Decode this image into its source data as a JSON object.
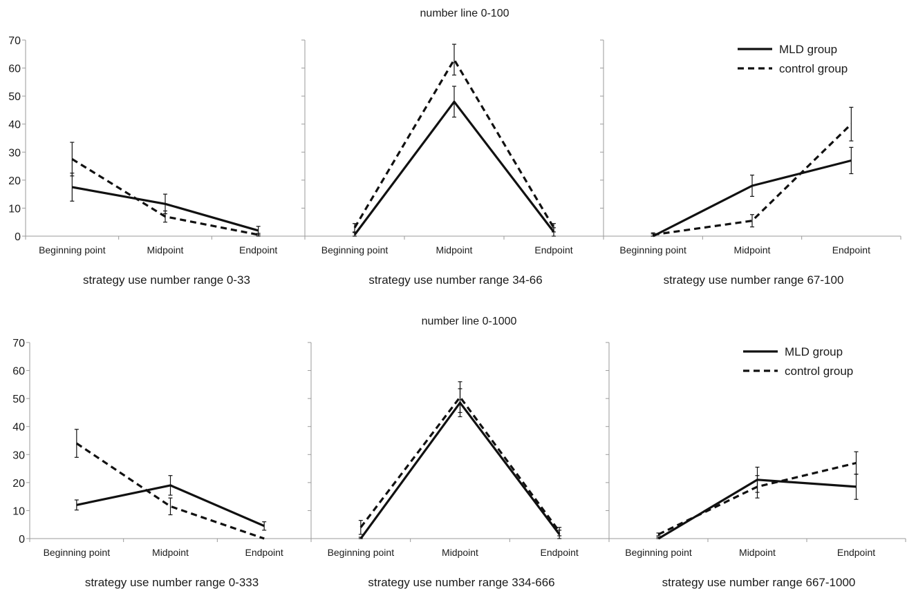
{
  "chart_data": [
    {
      "type": "line",
      "figure_row": 1,
      "title": "number line 0-100",
      "panels": [
        {
          "xlabel": "strategy use number range 0-33",
          "categories": [
            "Beginning point",
            "Midpoint",
            "Endpoint"
          ],
          "ylim": [
            0,
            70
          ],
          "yticks": [
            0,
            10,
            20,
            30,
            40,
            50,
            60,
            70
          ],
          "series": [
            {
              "name": "MLD group",
              "style": "solid",
              "values": [
                17.5,
                11.5,
                2
              ],
              "errors": [
                5,
                3.5,
                1.5
              ]
            },
            {
              "name": "control group",
              "style": "dashed",
              "values": [
                27.5,
                7,
                0.5
              ],
              "errors": [
                6,
                2,
                0.5
              ]
            }
          ]
        },
        {
          "xlabel": "strategy use number range 34-66",
          "categories": [
            "Beginning point",
            "Midpoint",
            "Endpoint"
          ],
          "ylim": [
            0,
            70
          ],
          "series": [
            {
              "name": "MLD group",
              "style": "solid",
              "values": [
                0.5,
                48,
                1.5
              ],
              "errors": [
                0.8,
                5.5,
                1.5
              ]
            },
            {
              "name": "control group",
              "style": "dashed",
              "values": [
                3,
                63,
                3
              ],
              "errors": [
                1.5,
                5.5,
                1.5
              ]
            }
          ]
        },
        {
          "xlabel": "strategy use number range 67-100",
          "categories": [
            "Beginning point",
            "Midpoint",
            "Endpoint"
          ],
          "ylim": [
            0,
            70
          ],
          "series": [
            {
              "name": "MLD group",
              "style": "solid",
              "values": [
                0,
                18,
                27
              ],
              "errors": [
                0.8,
                3.8,
                4.7
              ]
            },
            {
              "name": "control group",
              "style": "dashed",
              "values": [
                0.5,
                5.5,
                40
              ],
              "errors": [
                0.7,
                2.2,
                6
              ]
            }
          ],
          "legend": "top-right"
        }
      ]
    },
    {
      "type": "line",
      "figure_row": 2,
      "title": "number line 0-1000",
      "panels": [
        {
          "xlabel": "strategy use number range 0-333",
          "categories": [
            "Beginning point",
            "Midpoint",
            "Endpoint"
          ],
          "ylim": [
            0,
            70
          ],
          "yticks": [
            0,
            10,
            20,
            30,
            40,
            50,
            60,
            70
          ],
          "series": [
            {
              "name": "MLD group",
              "style": "solid",
              "values": [
                12,
                19,
                4.5
              ],
              "errors": [
                1.8,
                3.5,
                1.5
              ]
            },
            {
              "name": "control group",
              "style": "dashed",
              "values": [
                34,
                11.5,
                0
              ],
              "errors": [
                5,
                3,
                0
              ]
            }
          ]
        },
        {
          "xlabel": "strategy use number range 334-666",
          "categories": [
            "Beginning point",
            "Midpoint",
            "Endpoint"
          ],
          "ylim": [
            0,
            70
          ],
          "series": [
            {
              "name": "MLD group",
              "style": "solid",
              "values": [
                0,
                48.5,
                1.5
              ],
              "errors": [
                0.5,
                5,
                1.5
              ]
            },
            {
              "name": "control group",
              "style": "dashed",
              "values": [
                4,
                50.5,
                2.5
              ],
              "errors": [
                2.5,
                5.5,
                1.5
              ]
            }
          ]
        },
        {
          "xlabel": "strategy use number range 667-1000",
          "categories": [
            "Beginning point",
            "Midpoint",
            "Endpoint"
          ],
          "ylim": [
            0,
            70
          ],
          "series": [
            {
              "name": "MLD group",
              "style": "solid",
              "values": [
                0,
                21,
                18.5
              ],
              "errors": [
                0.5,
                4.5,
                4.5
              ]
            },
            {
              "name": "control group",
              "style": "dashed",
              "values": [
                1.5,
                18.5,
                27
              ],
              "errors": [
                0.5,
                4,
                4
              ]
            }
          ],
          "legend": "top-right"
        }
      ]
    }
  ]
}
